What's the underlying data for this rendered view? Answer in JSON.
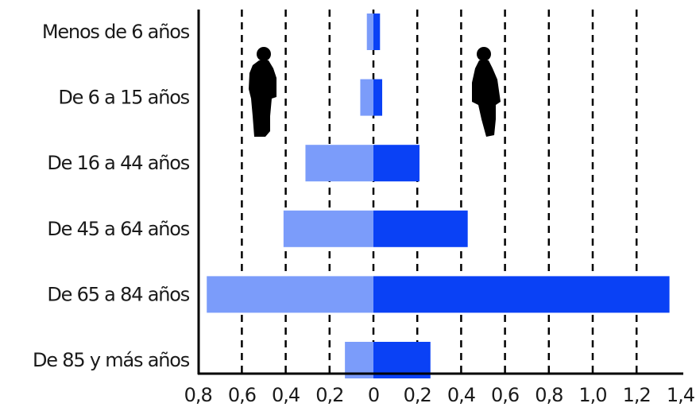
{
  "chart_data": {
    "type": "bar",
    "orientation": "horizontal",
    "layout": "population-pyramid",
    "categories": [
      "Menos de 6 años",
      "De 6 a 15 años",
      "De 16 a 44 años",
      "De 45 a 64 años",
      "De 65 a 84 años",
      "De 85 y más años"
    ],
    "series": [
      {
        "values": [
          0.03,
          0.06,
          0.31,
          0.41,
          0.76,
          0.13
        ],
        "side": "left",
        "color": "#7b9cfa"
      },
      {
        "values": [
          0.03,
          0.04,
          0.21,
          0.43,
          1.35,
          0.26
        ],
        "side": "right",
        "color": "#0a41f5"
      }
    ],
    "xlim": [
      -0.8,
      1.4
    ],
    "xticks": [
      -0.8,
      -0.6,
      -0.4,
      -0.2,
      0,
      0.2,
      0.4,
      0.6,
      0.8,
      1.0,
      1.2,
      1.4
    ],
    "tick_labels": [
      "0,8",
      "0,6",
      "0,4",
      "0,2",
      "0",
      "0,2",
      "0,4",
      "0,6",
      "0,8",
      "1,0",
      "1,2",
      "1,4"
    ],
    "grid": "vertical dashed",
    "icons": [
      {
        "name": "male-silhouette-icon",
        "side": "left"
      },
      {
        "name": "female-silhouette-icon",
        "side": "right"
      }
    ],
    "title": "",
    "xlabel": "",
    "ylabel": ""
  }
}
